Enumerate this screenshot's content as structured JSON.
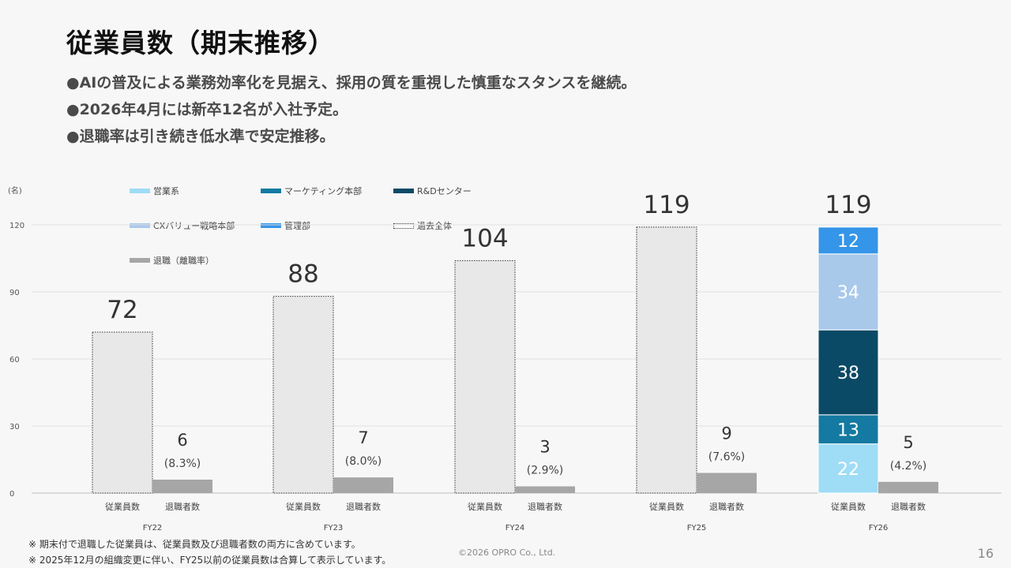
{
  "slide": {
    "title": "従業員数（期末推移）",
    "bullets": [
      "●AIの普及による業務効率化を見据え、採用の質を重視した慎重なスタンスを継続。",
      "●2026年4月には新卒12名が入社予定。",
      "●退職率は引き続き低水準で安定推移。"
    ],
    "footnotes": [
      "※ 期末付で退職した従業員は、従業員数及び退職者数の両方に含めています。",
      "※ 2025年12月の組織変更に伴い、FY25以前の従業員数は合算して表示しています。"
    ],
    "copyright": "©2026 OPRO Co., Ltd.",
    "page_number": "16"
  },
  "chart_data": {
    "type": "bar",
    "stacked": true,
    "y_unit_label": "(名)",
    "ylim": [
      0,
      120
    ],
    "yticks": [
      0,
      30,
      60,
      90,
      120
    ],
    "grid": true,
    "categories": [
      "FY22",
      "FY23",
      "FY24",
      "FY25",
      "FY26"
    ],
    "bar_labels": [
      "従業員数",
      "退職者数"
    ],
    "legend": [
      {
        "name": "営業系",
        "color": "#9fdcf6",
        "pattern": false
      },
      {
        "name": "マーケティング本部",
        "color": "#147aa1",
        "pattern": false
      },
      {
        "name": "R&Dセンター",
        "color": "#0b4a66",
        "pattern": false
      },
      {
        "name": "CXバリュー戦略本部",
        "color": "#a9c9eb",
        "pattern": false
      },
      {
        "name": "管理部",
        "color": "#3595e8",
        "pattern": false
      },
      {
        "name": "過去全体",
        "color": "#e8e8e8",
        "pattern": true
      },
      {
        "name": "退職（離職率）",
        "color": "#a6a6a6",
        "pattern": false
      }
    ],
    "employees_total": [
      72,
      88,
      104,
      119,
      119
    ],
    "past_total_series": {
      "name": "過去全体",
      "values": [
        72,
        88,
        104,
        119,
        null
      ],
      "color": "#e8e8e8"
    },
    "fy26_stack": [
      {
        "name": "営業系",
        "value": 22,
        "color": "#9fdcf6",
        "label_color": "#ffffff"
      },
      {
        "name": "マーケティング本部",
        "value": 13,
        "color": "#147aa1",
        "label_color": "#ffffff"
      },
      {
        "name": "R&Dセンター",
        "value": 38,
        "color": "#0b4a66",
        "label_color": "#ffffff"
      },
      {
        "name": "CXバリュー戦略本部",
        "value": 34,
        "color": "#a9c9eb",
        "label_color": "#ffffff"
      },
      {
        "name": "管理部",
        "value": 12,
        "color": "#3595e8",
        "label_color": "#ffffff"
      }
    ],
    "retirees": {
      "name": "退職（離職率）",
      "values": [
        6,
        7,
        3,
        9,
        5
      ],
      "rates": [
        "(8.3%)",
        "(8.0%)",
        "(2.9%)",
        "(7.6%)",
        "(4.2%)"
      ],
      "color": "#a6a6a6"
    }
  }
}
